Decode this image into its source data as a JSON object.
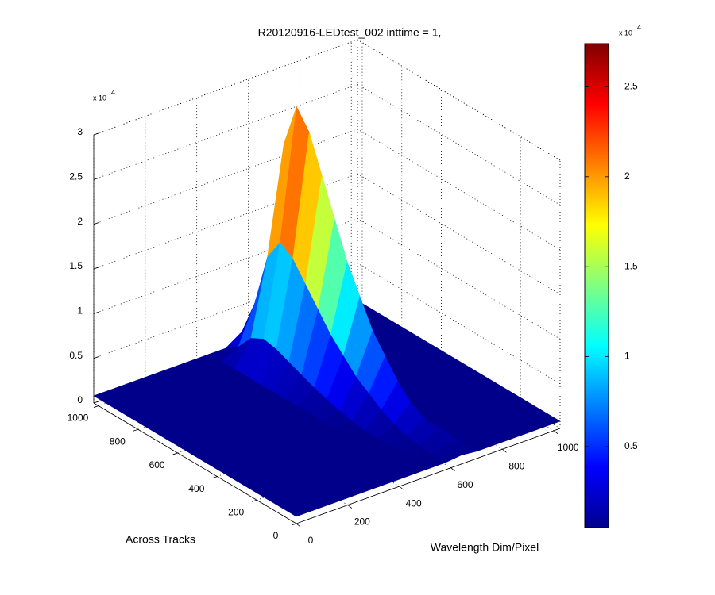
{
  "chart_data": {
    "type": "surface3d",
    "title": "R20120916-LEDtest_002 inttime = 1,",
    "xlabel": "Wavelength Dim/Pixel",
    "ylabel": "Across Tracks",
    "x": [
      0,
      64,
      128,
      192,
      256,
      320,
      384,
      448,
      512,
      576,
      640,
      704,
      768,
      832,
      896,
      960,
      1024
    ],
    "y": [
      0,
      64,
      128,
      192,
      256,
      320,
      384,
      448,
      512,
      576,
      640,
      704,
      768,
      832,
      896,
      960,
      1024
    ],
    "z": [
      [
        800,
        800,
        800,
        800,
        800,
        800,
        800,
        800,
        800,
        800,
        1000,
        800,
        800,
        800,
        800,
        800,
        800
      ],
      [
        800,
        800,
        800,
        800,
        800,
        800,
        800,
        800,
        800,
        800,
        1500,
        800,
        800,
        800,
        800,
        800,
        800
      ],
      [
        800,
        800,
        800,
        800,
        800,
        800,
        800,
        800,
        800,
        1000,
        2000,
        800,
        800,
        800,
        800,
        800,
        800
      ],
      [
        800,
        800,
        800,
        800,
        800,
        800,
        800,
        800,
        800,
        1250,
        2500,
        800,
        800,
        800,
        800,
        800,
        800
      ],
      [
        800,
        800,
        800,
        800,
        800,
        800,
        800,
        800,
        800,
        1750,
        3500,
        800,
        800,
        800,
        800,
        800,
        800
      ],
      [
        800,
        800,
        800,
        800,
        800,
        800,
        800,
        800,
        800,
        2500,
        5000,
        800,
        800,
        800,
        800,
        800,
        800
      ],
      [
        800,
        800,
        800,
        800,
        800,
        800,
        800,
        800,
        1050,
        3500,
        7000,
        800,
        800,
        800,
        800,
        800,
        800
      ],
      [
        800,
        800,
        800,
        800,
        800,
        800,
        800,
        800,
        1350,
        4500,
        9000,
        800,
        800,
        800,
        800,
        800,
        800
      ],
      [
        800,
        800,
        800,
        800,
        800,
        800,
        800,
        800,
        1800,
        6000,
        12000,
        800,
        800,
        800,
        800,
        800,
        800
      ],
      [
        800,
        800,
        800,
        800,
        800,
        800,
        800,
        800,
        2250,
        7500,
        15000,
        800,
        800,
        800,
        800,
        800,
        800
      ],
      [
        800,
        800,
        800,
        800,
        800,
        800,
        800,
        800,
        2850,
        9500,
        19000,
        950,
        800,
        800,
        800,
        800,
        800
      ],
      [
        800,
        800,
        800,
        800,
        800,
        800,
        800,
        800,
        3450,
        11500,
        23000,
        1150,
        800,
        800,
        800,
        800,
        800
      ],
      [
        800,
        800,
        800,
        800,
        800,
        800,
        800,
        800,
        4050,
        13500,
        27000,
        1350,
        800,
        800,
        800,
        800,
        800
      ],
      [
        800,
        800,
        800,
        800,
        800,
        800,
        800,
        800,
        4350,
        14500,
        29000,
        1450,
        800,
        800,
        800,
        800,
        800
      ],
      [
        800,
        800,
        800,
        800,
        800,
        800,
        800,
        800,
        3600,
        12000,
        24000,
        1200,
        800,
        800,
        800,
        800,
        800
      ],
      [
        800,
        800,
        800,
        800,
        800,
        800,
        800,
        800,
        1800,
        6000,
        12000,
        800,
        800,
        800,
        800,
        800,
        800
      ],
      [
        800,
        800,
        800,
        800,
        800,
        800,
        800,
        800,
        800,
        2000,
        4000,
        800,
        800,
        800,
        800,
        800,
        800
      ]
    ],
    "xlim": [
      0,
      1024
    ],
    "ylim": [
      0,
      1024
    ],
    "zlim": [
      0,
      30000
    ],
    "xticks": [
      0,
      200,
      400,
      600,
      800,
      1000
    ],
    "yticks": [
      0,
      200,
      400,
      600,
      800,
      1000
    ],
    "zticks": [
      0,
      {
        "value": 5000,
        "label": "0.5"
      },
      {
        "value": 10000,
        "label": "1"
      },
      {
        "value": 15000,
        "label": "1.5"
      },
      {
        "value": 20000,
        "label": "2"
      },
      {
        "value": 25000,
        "label": "2.5"
      },
      {
        "value": 30000,
        "label": "3"
      }
    ],
    "zexponent": {
      "base": "x 10",
      "power": "4"
    },
    "grid": true,
    "colormap": "jet",
    "colorbar": {
      "lim": [
        500,
        27400
      ],
      "ticks": [
        {
          "value": 5000,
          "label": "0.5"
        },
        {
          "value": 10000,
          "label": "1"
        },
        {
          "value": 15000,
          "label": "1.5"
        },
        {
          "value": 20000,
          "label": "2"
        },
        {
          "value": 25000,
          "label": "2.5"
        }
      ],
      "exponent": {
        "base": "x 10",
        "power": "4"
      }
    }
  }
}
